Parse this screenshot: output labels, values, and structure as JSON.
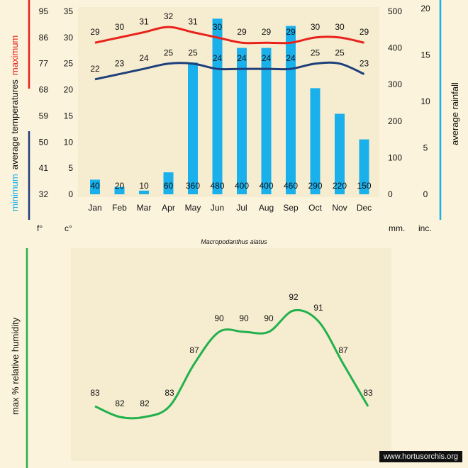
{
  "chart_data": [
    {
      "type": "bar+line",
      "title": "",
      "categories": [
        "Jan",
        "Feb",
        "Mar",
        "Apr",
        "May",
        "Jun",
        "Jul",
        "Aug",
        "Sep",
        "Oct",
        "Nov",
        "Dec"
      ],
      "series": [
        {
          "name": "maximum",
          "type": "line",
          "axis": "celsius",
          "color": "#e8231c",
          "values": [
            29,
            30,
            31,
            32,
            31,
            30,
            29,
            29,
            29,
            30,
            30,
            29
          ]
        },
        {
          "name": "minimum",
          "type": "line",
          "axis": "celsius",
          "color": "#1e3f7a",
          "values": [
            22,
            23,
            24,
            25,
            25,
            24,
            24,
            24,
            24,
            25,
            25,
            23
          ]
        },
        {
          "name": "average rainfall",
          "type": "bar",
          "axis": "mm",
          "color": "#1ab0ec",
          "values": [
            40,
            20,
            10,
            60,
            360,
            480,
            400,
            400,
            460,
            290,
            220,
            150
          ]
        }
      ],
      "axes": {
        "fahrenheit": {
          "ticks": [
            "95",
            "86",
            "77",
            "68",
            "59",
            "50",
            "41",
            "32"
          ],
          "unit": "f°"
        },
        "celsius": {
          "ticks": [
            "35",
            "30",
            "25",
            "20",
            "15",
            "10",
            "5",
            "0"
          ],
          "ylim": [
            0,
            35
          ],
          "unit": "c°"
        },
        "mm": {
          "ticks": [
            "500",
            "400",
            "300",
            "200",
            "100",
            "0"
          ],
          "ylim": [
            0,
            500
          ],
          "unit": "mm."
        },
        "inches": {
          "ticks": [
            "20",
            "15",
            "10",
            "5",
            "0"
          ],
          "unit": "inc."
        }
      },
      "ylabel_left": {
        "part1": "minimum",
        "part2": "average temperatures",
        "part3": "maximum"
      },
      "ylabel_right": "average rainfall",
      "species": "Macropodanthus alatus"
    },
    {
      "type": "line",
      "title": "",
      "categories": [
        "Jan",
        "Feb",
        "Mar",
        "Apr",
        "May",
        "Jun",
        "Jul",
        "Aug",
        "Sep",
        "Oct",
        "Nov",
        "Dec"
      ],
      "series": [
        {
          "name": "max % relative humidity",
          "color": "#22b14c",
          "values": [
            83,
            82,
            82,
            83,
            87,
            90,
            90,
            90,
            92,
            91,
            87,
            83
          ]
        }
      ],
      "ylabel": "max %  relative humidity"
    }
  ],
  "credit": "www.hortusorchis.org",
  "colors": {
    "background": "#fbf3dc",
    "panel": "#f6ecd0",
    "max": "#e8231c",
    "min": "#1e3f7a",
    "rain": "#1ab0ec",
    "humidity": "#22b14c"
  }
}
